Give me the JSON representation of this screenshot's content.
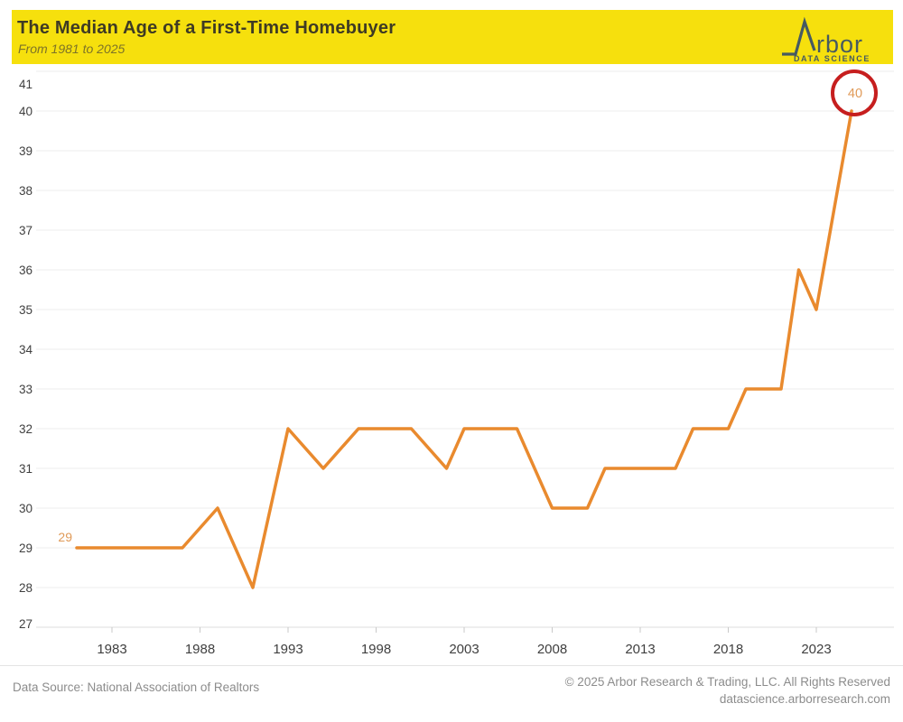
{
  "header": {
    "title": "The Median Age of a First-Time Homebuyer",
    "subtitle": "From 1981 to 2025",
    "logo": {
      "brand": "Arbor",
      "brand_visible_text": "rbor",
      "tagline": "DATA SCIENCE",
      "color": "#465A61"
    }
  },
  "footer": {
    "source": "Data Source: National Association of Realtors",
    "copyright": "© 2025 Arbor Research & Trading, LLC. All Rights Reserved",
    "website": "datascience.arborresearch.com"
  },
  "colors": {
    "header_background": "#F6E00D",
    "title_text": "#3E3A24",
    "subtitle_text": "#7D7328",
    "axis_text": "#3F3F3F",
    "gridline": "#EDEDED",
    "axis_line": "#DCDCDC",
    "tick_mark": "#C9C9C9",
    "footer_text": "#8C8C8C"
  },
  "chart_data": {
    "type": "line",
    "title": "The Median Age of a First-Time Homebuyer",
    "subtitle": "From 1981 to 2025",
    "xlabel": "",
    "ylabel": "",
    "xlim": [
      1981,
      2026
    ],
    "ylim": [
      27,
      41
    ],
    "x_ticks": [
      1983,
      1988,
      1993,
      1998,
      2003,
      2008,
      2013,
      2018,
      2023
    ],
    "y_ticks": [
      27,
      28,
      29,
      30,
      31,
      32,
      33,
      34,
      35,
      36,
      37,
      38,
      39,
      40,
      41
    ],
    "grid": "horizontal-only",
    "legend": "none",
    "line_color": "#E98A2E",
    "line_width": 3.5,
    "series": [
      {
        "name": "Median age of first-time homebuyer",
        "points": [
          {
            "year": 1981,
            "age": 29
          },
          {
            "year": 1987,
            "age": 29
          },
          {
            "year": 1989,
            "age": 30
          },
          {
            "year": 1991,
            "age": 28
          },
          {
            "year": 1993,
            "age": 32
          },
          {
            "year": 1995,
            "age": 31
          },
          {
            "year": 1997,
            "age": 32
          },
          {
            "year": 2000,
            "age": 32
          },
          {
            "year": 2002,
            "age": 31
          },
          {
            "year": 2003,
            "age": 32
          },
          {
            "year": 2006,
            "age": 32
          },
          {
            "year": 2008,
            "age": 30
          },
          {
            "year": 2010,
            "age": 30
          },
          {
            "year": 2011,
            "age": 31
          },
          {
            "year": 2015,
            "age": 31
          },
          {
            "year": 2016,
            "age": 32
          },
          {
            "year": 2018,
            "age": 32
          },
          {
            "year": 2019,
            "age": 33
          },
          {
            "year": 2021,
            "age": 33
          },
          {
            "year": 2022,
            "age": 36
          },
          {
            "year": 2023,
            "age": 35
          },
          {
            "year": 2025,
            "age": 40
          }
        ]
      }
    ],
    "annotations": {
      "first_point_label": "29",
      "first_point_year": 1981,
      "last_point_label": "40",
      "last_point_year": 2025,
      "label_color": "#E09A58",
      "last_point_circled": true,
      "circle_color": "#C61E1E"
    }
  }
}
